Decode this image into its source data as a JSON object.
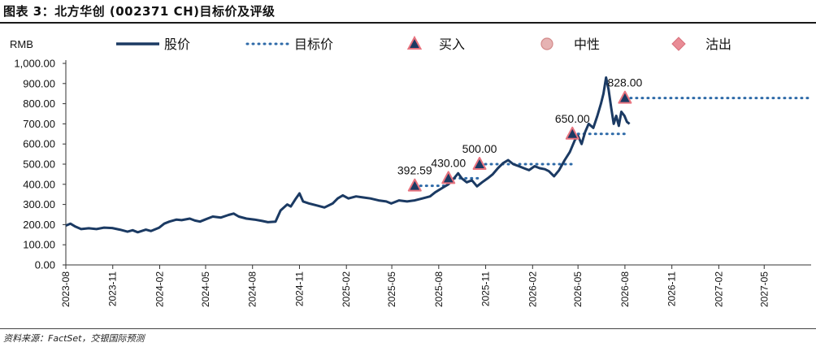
{
  "header": {
    "title": "图表 3：北方华创 (002371 CH)目标价及评级"
  },
  "footer": {
    "source": "资料来源：FactSet，交银国际预测"
  },
  "chart_data": {
    "type": "line",
    "ylabel": "RMB",
    "ylim": [
      0,
      1000
    ],
    "yticks": [
      "0.00",
      "100.00",
      "200.00",
      "300.00",
      "400.00",
      "500.00",
      "600.00",
      "700.00",
      "800.00",
      "900.00",
      "1,000.00"
    ],
    "xlim": [
      "2023-08-01",
      "2027-08-01"
    ],
    "xticks": [
      "2023-08",
      "2023-11",
      "2024-02",
      "2024-05",
      "2024-08",
      "2024-11",
      "2025-02",
      "2025-05",
      "2025-08",
      "2025-11",
      "2026-02",
      "2026-05",
      "2026-08",
      "2026-11",
      "2027-02",
      "2027-05"
    ],
    "legend": {
      "placement": "top",
      "entries": [
        {
          "name": "股价",
          "style": "solid-line",
          "color": "#1b3a63"
        },
        {
          "name": "目标价",
          "style": "dotted-line",
          "color": "#2e6aa8"
        },
        {
          "name": "买入",
          "style": "triangle",
          "color": "#1b3a63",
          "edge": "#e8737f"
        },
        {
          "name": "中性",
          "style": "circle",
          "color": "#e6b3b3"
        },
        {
          "name": "沽出",
          "style": "diamond",
          "color": "#e98c96"
        }
      ]
    },
    "series": [
      {
        "name": "股价",
        "points": [
          [
            "2023-08-01",
            195
          ],
          [
            "2023-08-10",
            205
          ],
          [
            "2023-08-20",
            190
          ],
          [
            "2023-08-31",
            178
          ],
          [
            "2023-09-15",
            182
          ],
          [
            "2023-09-30",
            178
          ],
          [
            "2023-10-15",
            185
          ],
          [
            "2023-10-31",
            183
          ],
          [
            "2023-11-15",
            175
          ],
          [
            "2023-11-30",
            165
          ],
          [
            "2023-12-10",
            172
          ],
          [
            "2023-12-20",
            162
          ],
          [
            "2024-01-05",
            175
          ],
          [
            "2024-01-15",
            168
          ],
          [
            "2024-01-31",
            185
          ],
          [
            "2024-02-10",
            205
          ],
          [
            "2024-02-20",
            215
          ],
          [
            "2024-03-05",
            225
          ],
          [
            "2024-03-15",
            222
          ],
          [
            "2024-03-31",
            230
          ],
          [
            "2024-04-10",
            220
          ],
          [
            "2024-04-20",
            215
          ],
          [
            "2024-04-30",
            225
          ],
          [
            "2024-05-15",
            240
          ],
          [
            "2024-05-31",
            235
          ],
          [
            "2024-06-15",
            248
          ],
          [
            "2024-06-25",
            255
          ],
          [
            "2024-07-05",
            240
          ],
          [
            "2024-07-20",
            230
          ],
          [
            "2024-08-05",
            225
          ],
          [
            "2024-08-20",
            218
          ],
          [
            "2024-08-31",
            212
          ],
          [
            "2024-09-15",
            215
          ],
          [
            "2024-09-25",
            270
          ],
          [
            "2024-10-08",
            300
          ],
          [
            "2024-10-15",
            290
          ],
          [
            "2024-10-25",
            330
          ],
          [
            "2024-11-01",
            355
          ],
          [
            "2024-11-08",
            315
          ],
          [
            "2024-11-20",
            305
          ],
          [
            "2024-12-05",
            295
          ],
          [
            "2024-12-20",
            285
          ],
          [
            "2025-01-05",
            305
          ],
          [
            "2025-01-15",
            330
          ],
          [
            "2025-01-25",
            345
          ],
          [
            "2025-02-05",
            330
          ],
          [
            "2025-02-20",
            340
          ],
          [
            "2025-03-05",
            335
          ],
          [
            "2025-03-20",
            330
          ],
          [
            "2025-04-05",
            320
          ],
          [
            "2025-04-20",
            315
          ],
          [
            "2025-04-30",
            305
          ],
          [
            "2025-05-15",
            320
          ],
          [
            "2025-05-31",
            315
          ],
          [
            "2025-06-15",
            320
          ],
          [
            "2025-06-30",
            330
          ],
          [
            "2025-07-15",
            340
          ],
          [
            "2025-07-25",
            360
          ],
          [
            "2025-08-10",
            385
          ],
          [
            "2025-08-20",
            400
          ],
          [
            "2025-08-31",
            430
          ],
          [
            "2025-09-08",
            455
          ],
          [
            "2025-09-15",
            430
          ],
          [
            "2025-09-25",
            410
          ],
          [
            "2025-10-05",
            420
          ],
          [
            "2025-10-15",
            390
          ],
          [
            "2025-10-25",
            410
          ],
          [
            "2025-11-05",
            430
          ],
          [
            "2025-11-15",
            450
          ],
          [
            "2025-11-25",
            480
          ],
          [
            "2025-12-05",
            505
          ],
          [
            "2025-12-15",
            520
          ],
          [
            "2025-12-25",
            500
          ],
          [
            "2026-01-05",
            490
          ],
          [
            "2026-01-15",
            480
          ],
          [
            "2026-01-25",
            470
          ],
          [
            "2026-02-05",
            490
          ],
          [
            "2026-02-15",
            480
          ],
          [
            "2026-02-25",
            475
          ],
          [
            "2026-03-05",
            465
          ],
          [
            "2026-03-15",
            440
          ],
          [
            "2026-03-25",
            470
          ],
          [
            "2026-04-05",
            520
          ],
          [
            "2026-04-15",
            560
          ],
          [
            "2026-04-25",
            620
          ],
          [
            "2026-05-01",
            640
          ],
          [
            "2026-05-08",
            600
          ],
          [
            "2026-05-15",
            660
          ],
          [
            "2026-05-22",
            700
          ],
          [
            "2026-05-31",
            680
          ],
          [
            "2026-06-08",
            740
          ],
          [
            "2026-06-15",
            800
          ],
          [
            "2026-06-20",
            850
          ],
          [
            "2026-06-25",
            930
          ],
          [
            "2026-06-30",
            870
          ],
          [
            "2026-07-05",
            780
          ],
          [
            "2026-07-10",
            700
          ],
          [
            "2026-07-15",
            740
          ],
          [
            "2026-07-20",
            690
          ],
          [
            "2026-07-25",
            760
          ],
          [
            "2026-07-31",
            740
          ],
          [
            "2026-08-05",
            710
          ],
          [
            "2026-08-10",
            700
          ]
        ]
      },
      {
        "name": "目标价",
        "segments": [
          {
            "from": "2025-06-15",
            "to": "2025-08-20",
            "value": 392.59
          },
          {
            "from": "2025-08-20",
            "to": "2025-10-20",
            "value": 430.0
          },
          {
            "from": "2025-10-20",
            "to": "2026-04-20",
            "value": 500.0
          },
          {
            "from": "2026-04-20",
            "to": "2026-08-01",
            "value": 650.0
          },
          {
            "from": "2026-08-01",
            "to": "2027-08-01",
            "value": 828.0
          }
        ]
      }
    ],
    "ratings": [
      {
        "date": "2025-06-15",
        "value": 392.59,
        "rating": "买入",
        "label": "392.59"
      },
      {
        "date": "2025-08-20",
        "value": 430.0,
        "rating": "买入",
        "label": "430.00"
      },
      {
        "date": "2025-10-20",
        "value": 500.0,
        "rating": "买入",
        "label": "500.00"
      },
      {
        "date": "2026-04-20",
        "value": 650.0,
        "rating": "买入",
        "label": "650.00"
      },
      {
        "date": "2026-08-01",
        "value": 828.0,
        "rating": "买入",
        "label": "828.00"
      }
    ],
    "colors": {
      "price": "#1b3a63",
      "target": "#2e6aa8",
      "marker_edge": "#e8737f"
    }
  }
}
